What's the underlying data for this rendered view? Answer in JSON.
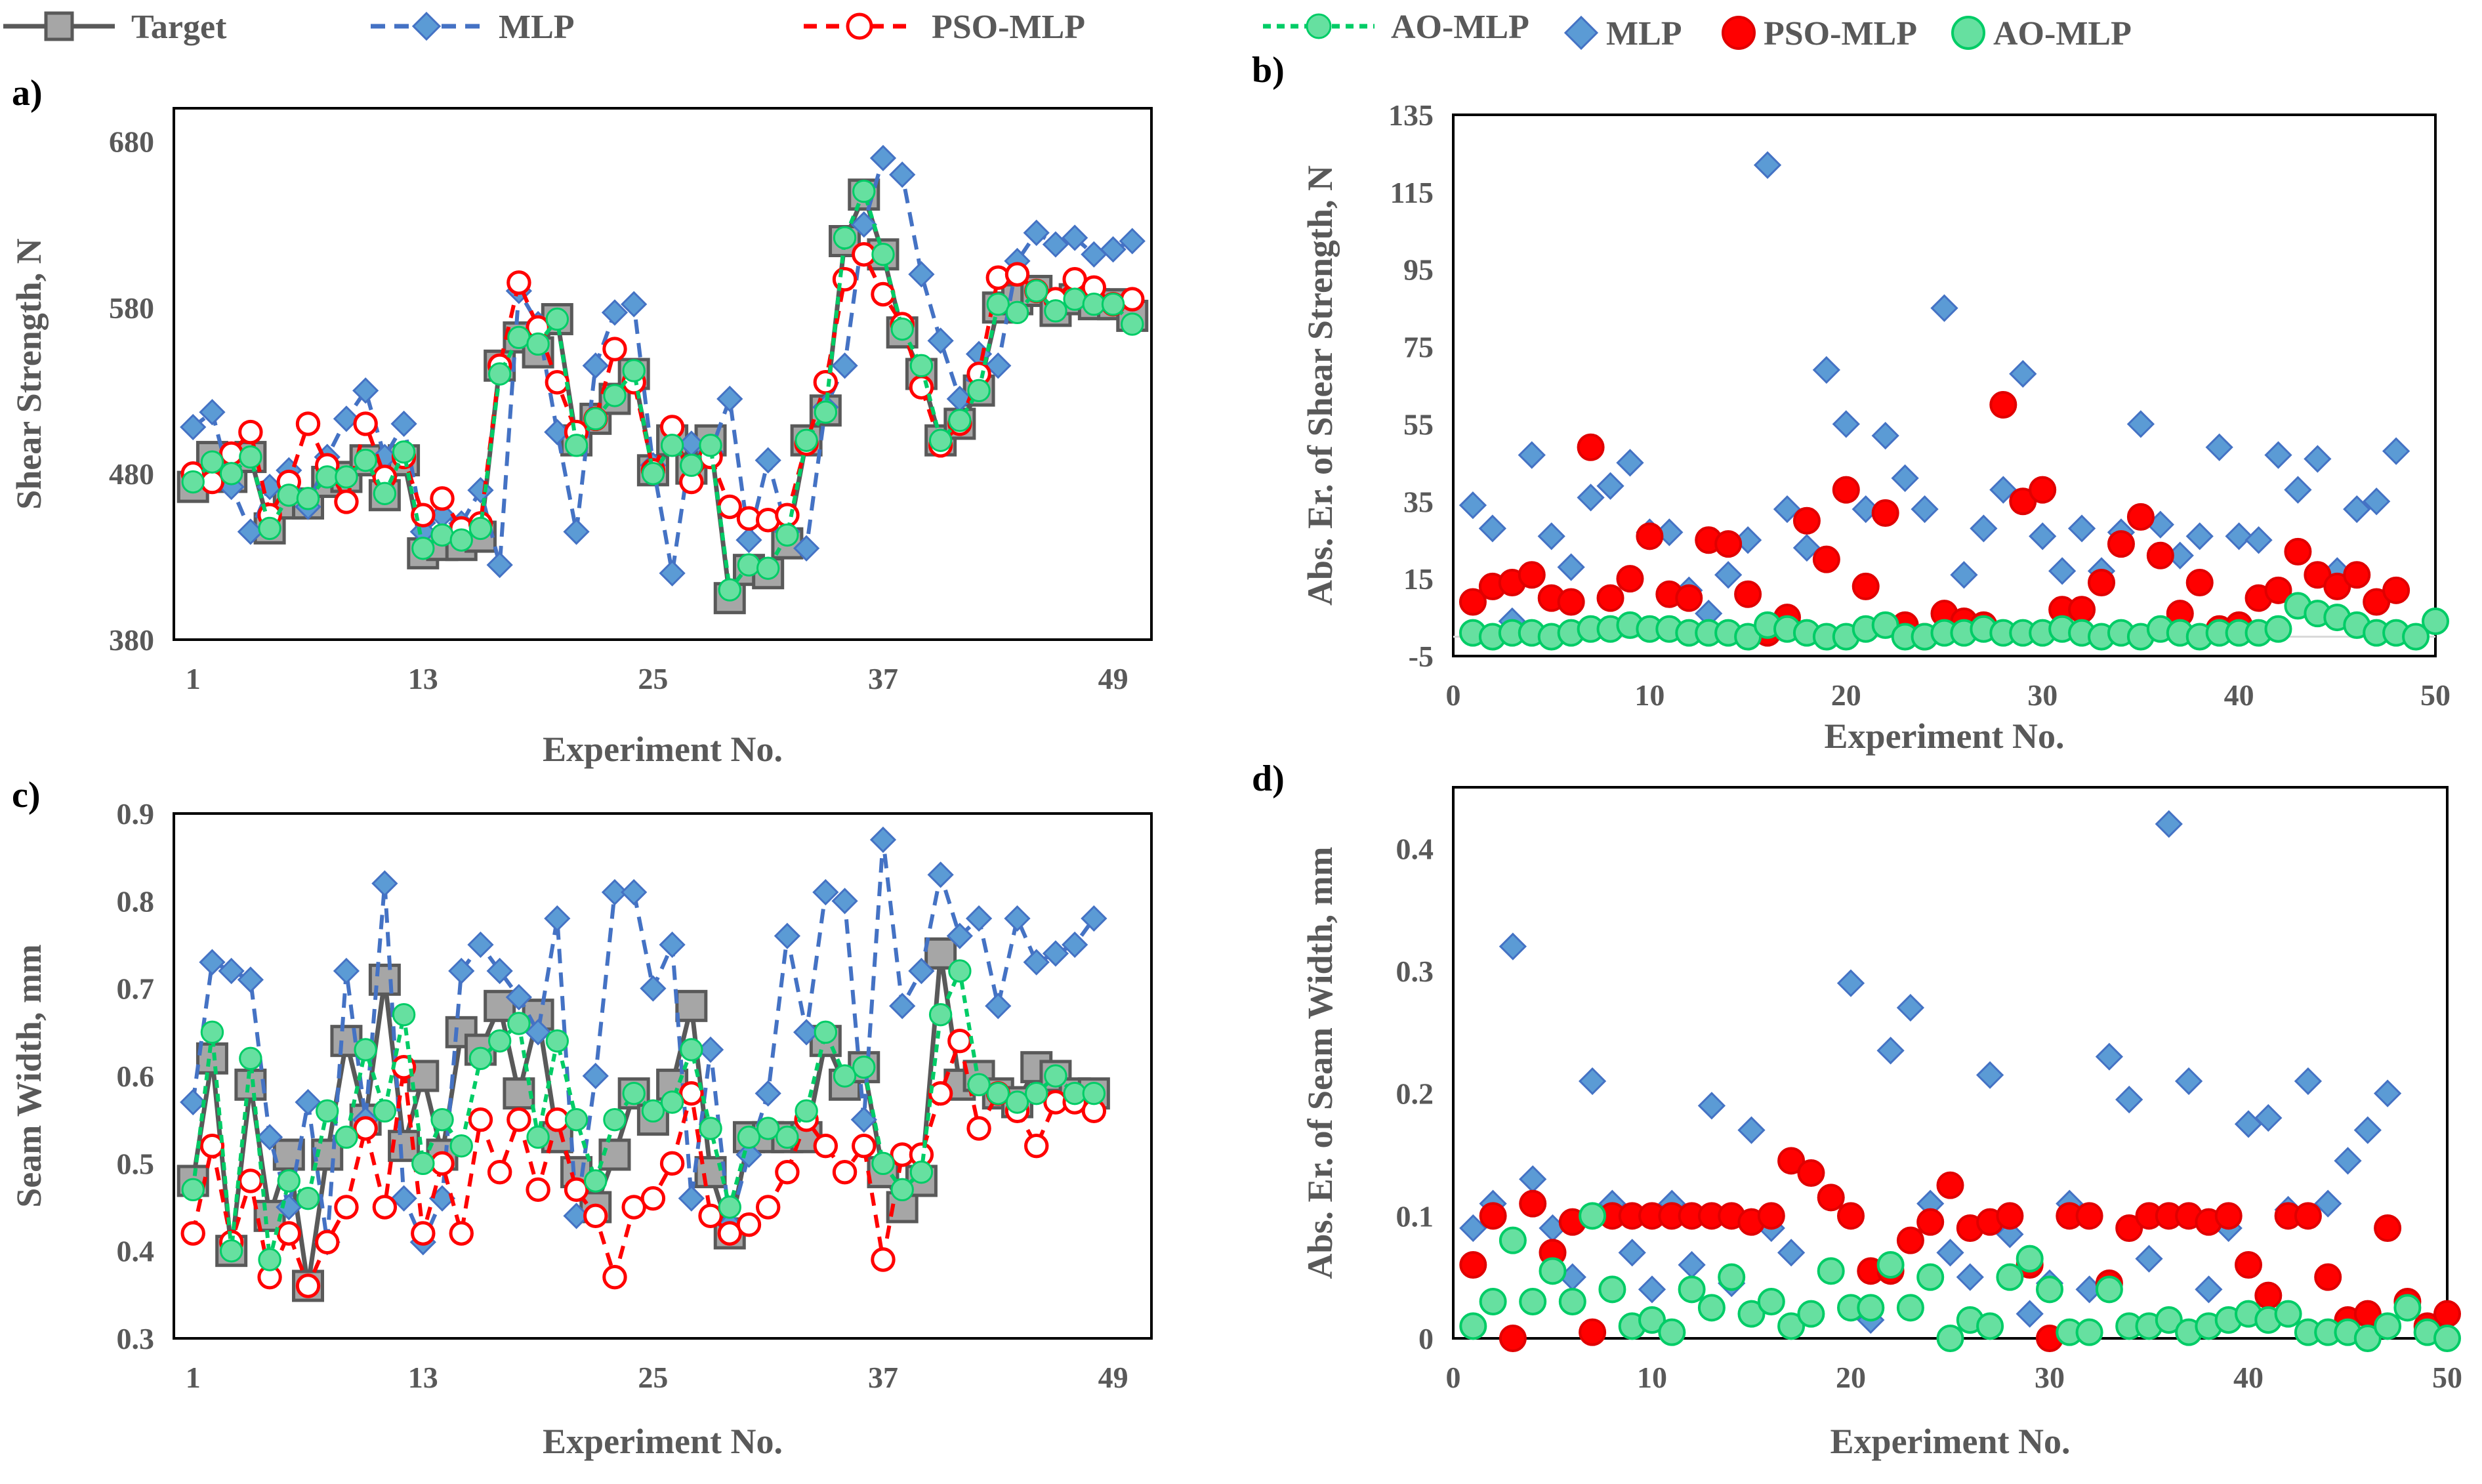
{
  "legend_left": [
    "Target",
    "MLP",
    "PSO-MLP",
    "AO-MLP"
  ],
  "legend_right": [
    "MLP",
    "PSO-MLP",
    "AO-MLP"
  ],
  "colors": {
    "target_line": "#595959",
    "target_fill": "#a6a6a6",
    "mlp": "#4472c4",
    "mlp_fill": "#5b9bd5",
    "pso": "#ff0000",
    "pso_fill": "#ff5050",
    "ao": "#00cc66",
    "ao_fill": "#66e0a0"
  },
  "chart_data": [
    {
      "panel": "a)",
      "type": "line",
      "xlabel": "Experiment No.",
      "ylabel": "Shear Strength, N",
      "xlim": [
        0,
        51
      ],
      "ylim": [
        380,
        700
      ],
      "xticks": [
        1,
        13,
        25,
        37,
        49
      ],
      "yticks": [
        380,
        480,
        580,
        680
      ],
      "series": [
        {
          "name": "Target",
          "values": [
            472,
            490,
            478,
            490,
            447,
            462,
            462,
            475,
            478,
            488,
            467,
            488,
            432,
            437,
            437,
            442,
            545,
            562,
            553,
            573,
            500,
            513,
            525,
            540,
            482,
            500,
            483,
            500,
            405,
            422,
            420,
            438,
            500,
            518,
            620,
            648,
            612,
            565,
            540,
            500,
            510,
            530,
            580,
            585,
            590,
            578,
            585,
            582,
            582,
            575
          ]
        },
        {
          "name": "MLP",
          "values": [
            508,
            517,
            472,
            445,
            472,
            482,
            460,
            490,
            513,
            530,
            490,
            510,
            445,
            455,
            450,
            470,
            425,
            590,
            570,
            505,
            445,
            545,
            577,
            582,
            485,
            420,
            498,
            493,
            525,
            440,
            488,
            445,
            435,
            520,
            545,
            630,
            670,
            660,
            600,
            560,
            525,
            552,
            545,
            608,
            625,
            618,
            622,
            612,
            615,
            620
          ]
        },
        {
          "name": "PSO-MLP",
          "values": [
            480,
            475,
            492,
            505,
            455,
            475,
            510,
            485,
            463,
            510,
            478,
            490,
            455,
            465,
            447,
            450,
            545,
            595,
            568,
            535,
            505,
            513,
            555,
            535,
            482,
            508,
            475,
            490,
            460,
            453,
            452,
            455,
            498,
            535,
            597,
            612,
            588,
            570,
            532,
            497,
            510,
            540,
            598,
            600,
            590,
            585,
            597,
            592,
            582,
            585
          ]
        },
        {
          "name": "AO-MLP",
          "values": [
            475,
            487,
            480,
            490,
            447,
            467,
            465,
            478,
            478,
            488,
            468,
            493,
            435,
            443,
            440,
            447,
            540,
            562,
            558,
            573,
            497,
            513,
            527,
            542,
            480,
            497,
            485,
            497,
            410,
            425,
            423,
            443,
            500,
            517,
            622,
            650,
            612,
            567,
            545,
            500,
            512,
            530,
            582,
            577,
            590,
            578,
            585,
            582,
            582,
            570
          ]
        }
      ]
    },
    {
      "panel": "b)",
      "type": "scatter",
      "xlabel": "Experiment No.",
      "ylabel": "Abs. Er. of Shear Strength, N",
      "xlim": [
        0,
        50
      ],
      "ylim": [
        -5,
        135
      ],
      "xticks": [
        0,
        10,
        20,
        30,
        40,
        50
      ],
      "yticks": [
        -5,
        15,
        35,
        55,
        75,
        95,
        115,
        135
      ],
      "series": [
        {
          "name": "MLP",
          "values": [
            34,
            28,
            4,
            47,
            26,
            18,
            36,
            39,
            45,
            27,
            27,
            12,
            6,
            16,
            25,
            122,
            33,
            23,
            69,
            55,
            33,
            52,
            41,
            33,
            85,
            16,
            28,
            38,
            68,
            26,
            17,
            28,
            17,
            27,
            55,
            29,
            21,
            26,
            49,
            26,
            25,
            47,
            38,
            46,
            17,
            33,
            35,
            48,
            null,
            null
          ]
        },
        {
          "name": "PSO-MLP",
          "values": [
            9,
            13,
            14,
            16,
            10,
            9,
            49,
            10,
            15,
            26,
            11,
            10,
            25,
            24,
            11,
            1,
            5,
            30,
            20,
            38,
            13,
            32,
            3,
            0,
            6,
            4,
            3,
            60,
            35,
            38,
            7,
            7,
            14,
            24,
            31,
            21,
            6,
            14,
            2,
            3,
            10,
            12,
            22,
            16,
            13,
            16,
            9,
            12,
            null,
            null
          ]
        },
        {
          "name": "AO-MLP",
          "values": [
            1,
            0,
            1,
            1,
            0,
            1,
            2,
            2,
            3,
            2,
            2,
            1,
            1,
            1,
            0,
            3,
            2,
            1,
            0,
            0,
            2,
            3,
            0,
            0,
            1,
            1,
            2,
            1,
            1,
            1,
            2,
            1,
            0,
            1,
            0,
            2,
            1,
            0,
            1,
            1,
            1,
            2,
            8,
            6,
            5,
            3,
            1,
            1,
            0,
            4
          ]
        }
      ]
    },
    {
      "panel": "c)",
      "type": "line",
      "xlabel": "Experiment No.",
      "ylabel": "Seam Width, mm",
      "xlim": [
        0,
        51
      ],
      "ylim": [
        0.3,
        0.9
      ],
      "xticks": [
        1,
        13,
        25,
        37,
        49
      ],
      "yticks": [
        0.3,
        0.4,
        0.5,
        0.6,
        0.7,
        0.8,
        0.9
      ],
      "series": [
        {
          "name": "Target",
          "values": [
            0.48,
            0.62,
            0.4,
            0.59,
            0.44,
            0.51,
            0.36,
            0.51,
            0.64,
            0.55,
            0.71,
            0.52,
            0.6,
            0.51,
            0.65,
            0.63,
            0.68,
            0.58,
            0.67,
            0.53,
            0.49,
            0.45,
            0.51,
            0.58,
            0.55,
            0.59,
            0.68,
            0.49,
            0.42,
            0.53,
            0.53,
            0.53,
            0.53,
            0.64,
            0.59,
            0.61,
            0.49,
            0.45,
            0.48,
            0.74,
            0.59,
            0.6,
            0.58,
            0.57,
            0.61,
            0.6,
            0.58,
            0.58,
            null,
            null
          ]
        },
        {
          "name": "MLP",
          "values": [
            0.57,
            0.73,
            0.72,
            0.71,
            0.53,
            0.45,
            0.57,
            0.41,
            0.72,
            0.55,
            0.82,
            0.46,
            0.41,
            0.46,
            0.72,
            0.75,
            0.72,
            0.69,
            0.65,
            0.78,
            0.44,
            0.6,
            0.81,
            0.81,
            0.7,
            0.75,
            0.46,
            0.63,
            0.43,
            0.51,
            0.58,
            0.76,
            0.65,
            0.81,
            0.8,
            0.55,
            0.87,
            0.68,
            0.72,
            0.83,
            0.76,
            0.78,
            0.68,
            0.78,
            0.73,
            0.74,
            0.75,
            0.78,
            null,
            null
          ]
        },
        {
          "name": "PSO-MLP",
          "values": [
            0.42,
            0.52,
            0.41,
            0.48,
            0.37,
            0.42,
            0.36,
            0.41,
            0.45,
            0.54,
            0.45,
            0.61,
            0.42,
            0.5,
            0.42,
            0.55,
            0.49,
            0.55,
            0.47,
            0.55,
            0.47,
            0.44,
            0.37,
            0.45,
            0.46,
            0.5,
            0.58,
            0.44,
            0.42,
            0.43,
            0.45,
            0.49,
            0.55,
            0.52,
            0.49,
            0.52,
            0.39,
            0.51,
            0.51,
            0.58,
            0.64,
            0.54,
            0.58,
            0.56,
            0.52,
            0.57,
            0.57,
            0.56,
            null,
            null
          ]
        },
        {
          "name": "AO-MLP",
          "values": [
            0.47,
            0.65,
            0.4,
            0.62,
            0.39,
            0.48,
            0.46,
            0.56,
            0.53,
            0.63,
            0.56,
            0.67,
            0.5,
            0.55,
            0.52,
            0.62,
            0.64,
            0.66,
            0.53,
            0.64,
            0.55,
            0.48,
            0.55,
            0.58,
            0.56,
            0.57,
            0.63,
            0.54,
            0.45,
            0.53,
            0.54,
            0.53,
            0.56,
            0.65,
            0.6,
            0.61,
            0.5,
            0.47,
            0.49,
            0.67,
            0.72,
            0.59,
            0.58,
            0.57,
            0.58,
            0.6,
            0.58,
            0.58,
            null,
            null
          ]
        }
      ]
    },
    {
      "panel": "d)",
      "type": "scatter",
      "xlabel": "Experiment No.",
      "ylabel": "Abs. Er. of Seam Width, mm",
      "xlim": [
        0,
        50
      ],
      "ylim": [
        0,
        0.45
      ],
      "xticks": [
        0,
        10,
        20,
        30,
        40,
        50
      ],
      "yticks": [
        0,
        0.1,
        0.2,
        0.3,
        0.4
      ],
      "series": [
        {
          "name": "MLP",
          "values": [
            0.09,
            0.11,
            0.32,
            0.13,
            0.09,
            0.05,
            0.21,
            0.11,
            0.07,
            0.04,
            0.11,
            0.06,
            0.19,
            0.045,
            0.17,
            0.09,
            0.07,
            0.135,
            0.115,
            0.29,
            0.015,
            0.235,
            0.27,
            0.11,
            0.07,
            0.05,
            0.215,
            0.085,
            0.02,
            0.045,
            0.11,
            0.04,
            0.23,
            0.195,
            0.065,
            0.42,
            0.21,
            0.04,
            0.09,
            0.175,
            0.18,
            0.105,
            0.21,
            0.11,
            0.145,
            0.17,
            0.2,
            null,
            null,
            null
          ]
        },
        {
          "name": "PSO-MLP",
          "values": [
            0.06,
            0.1,
            0.0,
            0.11,
            0.07,
            0.095,
            0.005,
            0.1,
            0.1,
            0.1,
            0.1,
            0.1,
            0.1,
            0.1,
            0.095,
            0.1,
            0.145,
            0.135,
            0.115,
            0.1,
            0.055,
            0.055,
            0.08,
            0.095,
            0.125,
            0.09,
            0.095,
            0.1,
            0.06,
            0.0,
            0.1,
            0.1,
            0.045,
            0.09,
            0.1,
            0.1,
            0.1,
            0.095,
            0.1,
            0.06,
            0.035,
            0.1,
            0.1,
            0.05,
            0.015,
            0.02,
            0.09,
            0.03,
            0.01,
            0.02
          ]
        },
        {
          "name": "AO-MLP",
          "values": [
            0.01,
            0.03,
            0.08,
            0.03,
            0.055,
            0.03,
            0.1,
            0.04,
            0.01,
            0.015,
            0.005,
            0.04,
            0.025,
            0.05,
            0.02,
            0.03,
            0.01,
            0.02,
            0.055,
            0.025,
            0.025,
            0.06,
            0.025,
            0.05,
            0.0,
            0.015,
            0.01,
            0.05,
            0.065,
            0.04,
            0.005,
            0.005,
            0.04,
            0.01,
            0.01,
            0.015,
            0.005,
            0.01,
            0.015,
            0.02,
            0.015,
            0.02,
            0.005,
            0.005,
            0.005,
            0.0,
            0.01,
            0.025,
            0.005,
            0.0
          ]
        }
      ]
    }
  ]
}
